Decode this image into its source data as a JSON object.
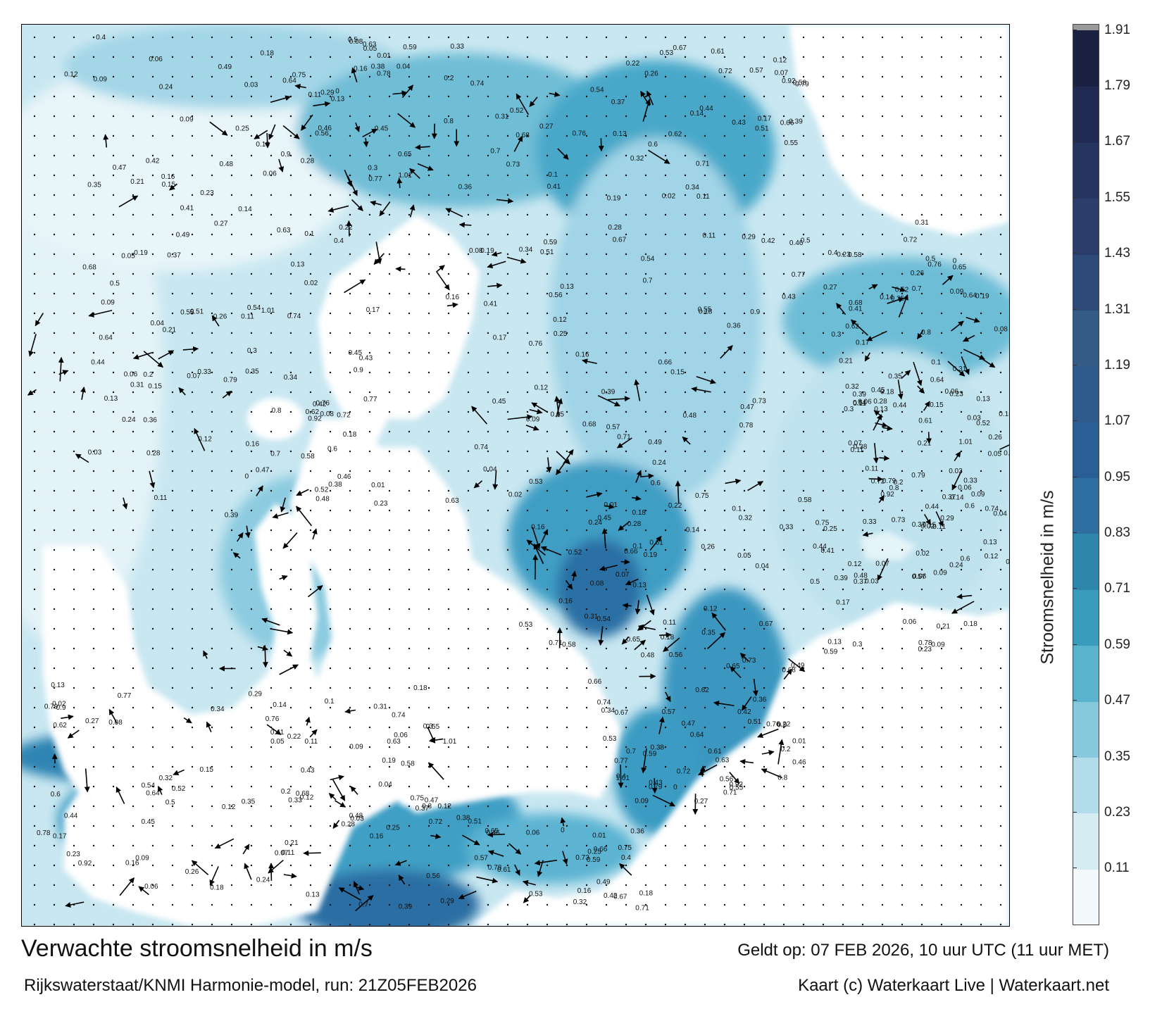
{
  "title": "Verwachte stroomsnelheid in m/s",
  "model_run": "Rijkswaterstaat/KNMI Harmonie-model, run: 21Z05FEB2026",
  "valid_time": "Geldt op: 07 FEB 2026, 10 uur UTC (11 uur MET)",
  "copyright": "Kaart (c) Waterkaart Live | Waterkaart.net",
  "colorbar": {
    "label": "Stroomsnelheid in m/s",
    "ticks": [
      "0.11",
      "0.23",
      "0.35",
      "0.47",
      "0.59",
      "0.71",
      "0.83",
      "0.95",
      "1.07",
      "1.19",
      "1.31",
      "1.43",
      "1.55",
      "1.67",
      "1.79",
      "1.91"
    ],
    "colors": [
      "#f3f9fb",
      "#d6ecf3",
      "#b3dcea",
      "#86c8dc",
      "#5ab3cd",
      "#3a9cbd",
      "#2f86ad",
      "#2e6ea0",
      "#2c5e96",
      "#2f5a8c",
      "#345a86",
      "#2e4a78",
      "#2b3d6b",
      "#263460",
      "#202a52",
      "#1a2040"
    ],
    "top_cap_color": "#9a9a9a"
  },
  "map": {
    "land_color": "#ffffff",
    "sea_light": "#d2ecf4",
    "sea_mid": "#7cc2d9",
    "sea_strong": "#2b7fa8",
    "sea_max": "#21598c",
    "sample_labels": [
      "0.13",
      "0.18",
      "0.16",
      "0.12",
      "0.11",
      "0.13",
      "0.09",
      "0.1",
      "0.06",
      "0.05",
      "0.17",
      "0.15",
      "0.14",
      "0.07",
      "0.08",
      "0.04",
      "0.03",
      "0.02",
      "0.11",
      "0.19",
      "0.21",
      "0.23",
      "0.24",
      "0.26",
      "0.28",
      "0.3",
      "0.31",
      "0.33",
      "0.35",
      "0.37",
      "0.39",
      "0.41",
      "0.44",
      "0.45",
      "0.48",
      "0.5",
      "0.52",
      "0.54",
      "0.58",
      "0.6",
      "0.62",
      "0.64",
      "0.68",
      "0.7",
      "0.72",
      "0.74",
      "0.76",
      "0.79",
      "0.8",
      "0.92",
      "1.01",
      "0.9",
      "0.77",
      "0.63",
      "0.55",
      "0.43",
      "0.34",
      "0.27",
      "0.22",
      "0.2",
      "0.01",
      "0",
      "0.36",
      "0.38",
      "0.4",
      "0.42",
      "0.46",
      "0.47",
      "0.49",
      "0.51",
      "0.53",
      "0.56",
      "0.57",
      "0.59",
      "0.61",
      "0.65",
      "0.66",
      "0.67",
      "0.71",
      "0.73",
      "0.75",
      "0.78",
      "0.25",
      "0.29",
      "0.32",
      "0.09",
      "0.06",
      "0.12",
      "0.18",
      "0.16"
    ]
  }
}
